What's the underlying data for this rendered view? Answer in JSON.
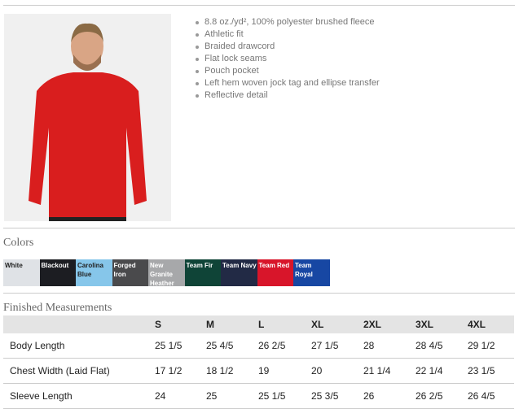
{
  "features": [
    "8.8 oz./yd², 100% polyester brushed fleece",
    "Athletic fit",
    "Braided drawcord",
    "Flat lock seams",
    "Pouch pocket",
    "Left hem woven jock tag and ellipse transfer",
    "Reflective detail"
  ],
  "colors_title": "Colors",
  "colors": [
    {
      "name": "White",
      "hex": "#dfe2e6",
      "text": "#222"
    },
    {
      "name": "Blackout",
      "hex": "#1c1d22",
      "text": "#fff"
    },
    {
      "name": "Carolina Blue",
      "hex": "#86c6ea",
      "text": "#222"
    },
    {
      "name": "Forged Iron",
      "hex": "#4a4a4c",
      "text": "#fff"
    },
    {
      "name": "New Granite Heather",
      "hex": "#a7a8aa",
      "text": "#fff"
    },
    {
      "name": "Team Fir",
      "hex": "#0f4437",
      "text": "#fff"
    },
    {
      "name": "Team Navy",
      "hex": "#222a45",
      "text": "#fff"
    },
    {
      "name": "Team Red",
      "hex": "#d8152a",
      "text": "#fff"
    },
    {
      "name": "Team Royal",
      "hex": "#1747a3",
      "text": "#fff"
    }
  ],
  "measurements_title": "Finished Measurements",
  "table": {
    "headers": [
      "",
      "S",
      "M",
      "L",
      "XL",
      "2XL",
      "3XL",
      "4XL"
    ],
    "rows": [
      [
        "Body Length",
        "25 1/5",
        "25 4/5",
        "26 2/5",
        "27 1/5",
        "28",
        "28 4/5",
        "29 1/2"
      ],
      [
        "Chest Width (Laid Flat)",
        "17 1/2",
        "18 1/2",
        "19",
        "20",
        "21 1/4",
        "22 1/4",
        "23 1/5"
      ],
      [
        "Sleeve Length",
        "24",
        "25",
        "25 1/5",
        "25 3/5",
        "26",
        "26 2/5",
        "26 4/5"
      ]
    ]
  }
}
